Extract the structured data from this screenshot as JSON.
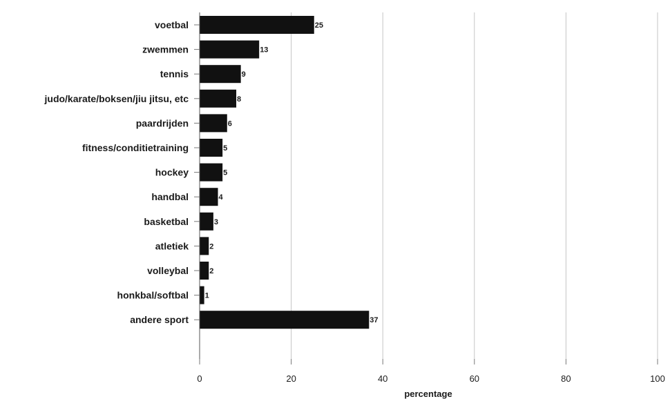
{
  "chart_data": {
    "type": "bar",
    "orientation": "horizontal",
    "categories": [
      "voetbal",
      "zwemmen",
      "tennis",
      "judo/karate/boksen/jiu jitsu, etc",
      "paardrijden",
      "fitness/conditietraining",
      "hockey",
      "handbal",
      "basketbal",
      "atletiek",
      "volleybal",
      "honkbal/softbal",
      "andere sport"
    ],
    "values": [
      25,
      13,
      9,
      8,
      6,
      5,
      5,
      4,
      3,
      2,
      2,
      1,
      37
    ],
    "xlabel": "percentage",
    "ylabel": "",
    "xlim": [
      0,
      100
    ],
    "xticks": [
      0,
      20,
      40,
      60,
      80,
      100
    ],
    "grid": "vertical",
    "bar_color": "#111111",
    "grid_color": "#c4c4c4"
  }
}
